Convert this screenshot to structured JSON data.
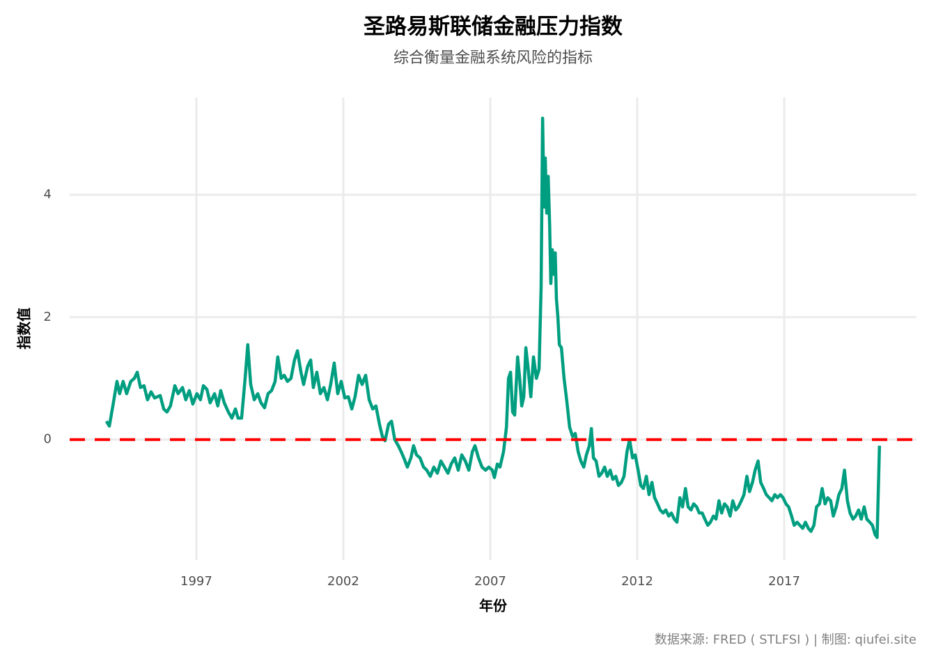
{
  "chart_data": {
    "type": "line",
    "title": "圣路易斯联储金融压力指数",
    "subtitle": "综合衡量金融系统风险的指标",
    "x_label": "年份",
    "y_label": "指数值",
    "caption": "数据来源: FRED ( STLFSI ) | 制图: qiufei.site",
    "color": "#009e80",
    "grid": true,
    "reference_line": {
      "value": 0,
      "color": "#ff0000",
      "style": "dashed"
    },
    "xlim": [
      1992.69,
      2021.5
    ],
    "xticks": [
      1997,
      2002,
      2007,
      2012,
      2017
    ],
    "ylim": [
      -1.97,
      5.59
    ],
    "yticks": [
      0,
      2,
      4
    ],
    "x": [
      1993.94,
      1994.04,
      1994.16,
      1994.3,
      1994.39,
      1994.51,
      1994.63,
      1994.77,
      1994.89,
      1994.99,
      1995.1,
      1995.22,
      1995.34,
      1995.46,
      1995.58,
      1995.77,
      1995.89,
      1996.0,
      1996.12,
      1996.27,
      1996.38,
      1996.53,
      1996.64,
      1996.76,
      1996.88,
      1997.02,
      1997.14,
      1997.24,
      1997.36,
      1997.47,
      1997.62,
      1997.73,
      1997.83,
      1997.95,
      1998.09,
      1998.21,
      1998.33,
      1998.42,
      1998.54,
      1998.66,
      1998.75,
      1998.85,
      1998.97,
      1999.09,
      1999.2,
      1999.32,
      1999.44,
      1999.56,
      1999.68,
      1999.77,
      1999.89,
      1999.99,
      2000.1,
      2000.22,
      2000.34,
      2000.44,
      2000.56,
      2000.65,
      2000.79,
      2000.89,
      2000.98,
      2001.1,
      2001.22,
      2001.34,
      2001.46,
      2001.57,
      2001.69,
      2001.81,
      2001.93,
      2002.05,
      2002.17,
      2002.29,
      2002.4,
      2002.52,
      2002.64,
      2002.76,
      2002.88,
      2003.0,
      2003.11,
      2003.23,
      2003.33,
      2003.42,
      2003.54,
      2003.64,
      2003.75,
      2003.87,
      2003.97,
      2004.06,
      2004.18,
      2004.3,
      2004.39,
      2004.49,
      2004.61,
      2004.73,
      2004.84,
      2004.96,
      2005.08,
      2005.2,
      2005.32,
      2005.44,
      2005.56,
      2005.67,
      2005.79,
      2005.91,
      2006.03,
      2006.15,
      2006.27,
      2006.39,
      2006.48,
      2006.6,
      2006.72,
      2006.84,
      2006.95,
      2007.07,
      2007.14,
      2007.24,
      2007.33,
      2007.45,
      2007.55,
      2007.62,
      2007.69,
      2007.76,
      2007.83,
      2007.93,
      2008.0,
      2008.07,
      2008.14,
      2008.21,
      2008.28,
      2008.38,
      2008.47,
      2008.57,
      2008.66,
      2008.73,
      2008.78,
      2008.83,
      2008.87,
      2008.92,
      2008.97,
      2009.02,
      2009.06,
      2009.11,
      2009.16,
      2009.21,
      2009.25,
      2009.3,
      2009.35,
      2009.42,
      2009.51,
      2009.61,
      2009.7,
      2009.8,
      2009.89,
      2009.99,
      2010.08,
      2010.18,
      2010.27,
      2010.37,
      2010.44,
      2010.51,
      2010.6,
      2010.7,
      2010.79,
      2010.89,
      2010.98,
      2011.08,
      2011.17,
      2011.27,
      2011.36,
      2011.46,
      2011.55,
      2011.65,
      2011.74,
      2011.84,
      2011.93,
      2012.03,
      2012.12,
      2012.21,
      2012.31,
      2012.4,
      2012.5,
      2012.59,
      2012.69,
      2012.78,
      2012.88,
      2012.97,
      2013.07,
      2013.16,
      2013.26,
      2013.35,
      2013.45,
      2013.54,
      2013.64,
      2013.73,
      2013.83,
      2013.92,
      2014.02,
      2014.11,
      2014.21,
      2014.3,
      2014.4,
      2014.49,
      2014.59,
      2014.68,
      2014.78,
      2014.87,
      2014.97,
      2015.06,
      2015.16,
      2015.25,
      2015.35,
      2015.44,
      2015.54,
      2015.63,
      2015.73,
      2015.82,
      2015.92,
      2016.01,
      2016.11,
      2016.2,
      2016.3,
      2016.39,
      2016.49,
      2016.58,
      2016.68,
      2016.77,
      2016.87,
      2016.96,
      2017.06,
      2017.15,
      2017.25,
      2017.34,
      2017.44,
      2017.53,
      2017.63,
      2017.72,
      2017.82,
      2017.91,
      2018.01,
      2018.1,
      2018.2,
      2018.29,
      2018.39,
      2018.48,
      2018.58,
      2018.67,
      2018.77,
      2018.86,
      2018.96,
      2019.05,
      2019.15,
      2019.24,
      2019.34,
      2019.43,
      2019.53,
      2019.62,
      2019.72,
      2019.81,
      2019.91,
      2020.0,
      2020.09,
      2020.16,
      2020.24
    ],
    "values": [
      0.3,
      0.22,
      0.55,
      0.95,
      0.75,
      0.95,
      0.75,
      0.95,
      1.0,
      1.1,
      0.85,
      0.88,
      0.65,
      0.78,
      0.68,
      0.72,
      0.5,
      0.45,
      0.55,
      0.88,
      0.75,
      0.85,
      0.65,
      0.8,
      0.58,
      0.75,
      0.65,
      0.88,
      0.82,
      0.6,
      0.75,
      0.55,
      0.8,
      0.6,
      0.45,
      0.35,
      0.5,
      0.35,
      0.35,
      1.0,
      1.55,
      0.9,
      0.65,
      0.75,
      0.6,
      0.52,
      0.75,
      0.8,
      0.95,
      1.35,
      1.0,
      1.05,
      0.95,
      1.0,
      1.3,
      1.45,
      1.1,
      0.9,
      1.2,
      1.3,
      0.85,
      1.1,
      0.75,
      0.85,
      0.65,
      0.9,
      1.25,
      0.75,
      0.95,
      0.68,
      0.7,
      0.5,
      0.7,
      1.05,
      0.9,
      1.05,
      0.65,
      0.5,
      0.55,
      0.25,
      0.05,
      -0.02,
      0.25,
      0.3,
      0.0,
      -0.1,
      -0.2,
      -0.3,
      -0.45,
      -0.3,
      -0.1,
      -0.25,
      -0.3,
      -0.45,
      -0.5,
      -0.6,
      -0.45,
      -0.55,
      -0.35,
      -0.45,
      -0.55,
      -0.4,
      -0.3,
      -0.5,
      -0.25,
      -0.35,
      -0.5,
      -0.2,
      -0.1,
      -0.3,
      -0.45,
      -0.5,
      -0.45,
      -0.5,
      -0.62,
      -0.4,
      -0.45,
      -0.2,
      0.2,
      1.0,
      1.1,
      0.45,
      0.4,
      1.35,
      1.0,
      0.55,
      0.7,
      1.5,
      1.2,
      0.7,
      1.35,
      1.0,
      1.15,
      2.5,
      5.25,
      3.8,
      4.6,
      3.7,
      4.3,
      3.5,
      2.55,
      3.1,
      2.7,
      3.05,
      2.3,
      2.0,
      1.55,
      1.5,
      1.0,
      0.6,
      0.2,
      0.05,
      0.1,
      -0.2,
      -0.35,
      -0.45,
      -0.25,
      -0.1,
      0.18,
      -0.3,
      -0.35,
      -0.6,
      -0.55,
      -0.45,
      -0.6,
      -0.5,
      -0.65,
      -0.6,
      -0.75,
      -0.7,
      -0.6,
      -0.2,
      0.0,
      -0.3,
      -0.25,
      -0.5,
      -0.75,
      -0.8,
      -0.6,
      -0.9,
      -0.7,
      -0.95,
      -1.05,
      -1.15,
      -1.2,
      -1.15,
      -1.25,
      -1.2,
      -1.3,
      -1.35,
      -0.95,
      -1.1,
      -0.8,
      -1.1,
      -1.15,
      -1.05,
      -1.1,
      -1.2,
      -1.2,
      -1.3,
      -1.4,
      -1.35,
      -1.25,
      -1.3,
      -1.0,
      -1.2,
      -1.05,
      -1.1,
      -1.25,
      -1.0,
      -1.15,
      -1.1,
      -1.0,
      -0.9,
      -0.6,
      -0.85,
      -0.7,
      -0.5,
      -0.35,
      -0.7,
      -0.8,
      -0.9,
      -0.95,
      -1.0,
      -0.9,
      -0.95,
      -0.9,
      -0.95,
      -1.05,
      -1.1,
      -1.25,
      -1.4,
      -1.35,
      -1.4,
      -1.45,
      -1.35,
      -1.45,
      -1.5,
      -1.4,
      -1.1,
      -1.05,
      -0.8,
      -1.05,
      -0.95,
      -1.0,
      -1.25,
      -1.1,
      -0.9,
      -0.8,
      -0.5,
      -1.0,
      -1.2,
      -1.3,
      -1.25,
      -1.15,
      -1.3,
      -1.1,
      -1.3,
      -1.35,
      -1.4,
      -1.55,
      -1.6,
      -0.1
    ]
  }
}
